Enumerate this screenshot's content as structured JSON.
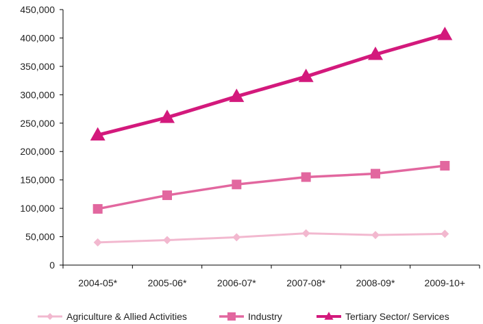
{
  "chart_data": {
    "type": "line",
    "title": "",
    "xlabel": "",
    "ylabel": "",
    "categories": [
      "2004-05*",
      "2005-06*",
      "2006-07*",
      "2007-08*",
      "2008-09*",
      "2009-10+"
    ],
    "ylim": [
      0,
      450000
    ],
    "y_ticks": [
      "0",
      "50,000",
      "100,000",
      "150,000",
      "200,000",
      "250,000",
      "300,000",
      "350,000",
      "400,000",
      "450,000"
    ],
    "grid": false,
    "legend_position": "bottom",
    "series": [
      {
        "name": "Agriculture & Allied Activities",
        "values": [
          40000,
          44000,
          49000,
          56000,
          53000,
          55000
        ],
        "color": "#f2b8cf",
        "marker": "diamond"
      },
      {
        "name": "Industry",
        "values": [
          99000,
          123000,
          142000,
          155000,
          161000,
          175000
        ],
        "color": "#e2679f",
        "marker": "square"
      },
      {
        "name": "Tertiary Sector/ Services",
        "values": [
          229000,
          260000,
          297000,
          332000,
          371000,
          406000
        ],
        "color": "#d3197c",
        "marker": "triangle"
      }
    ]
  }
}
